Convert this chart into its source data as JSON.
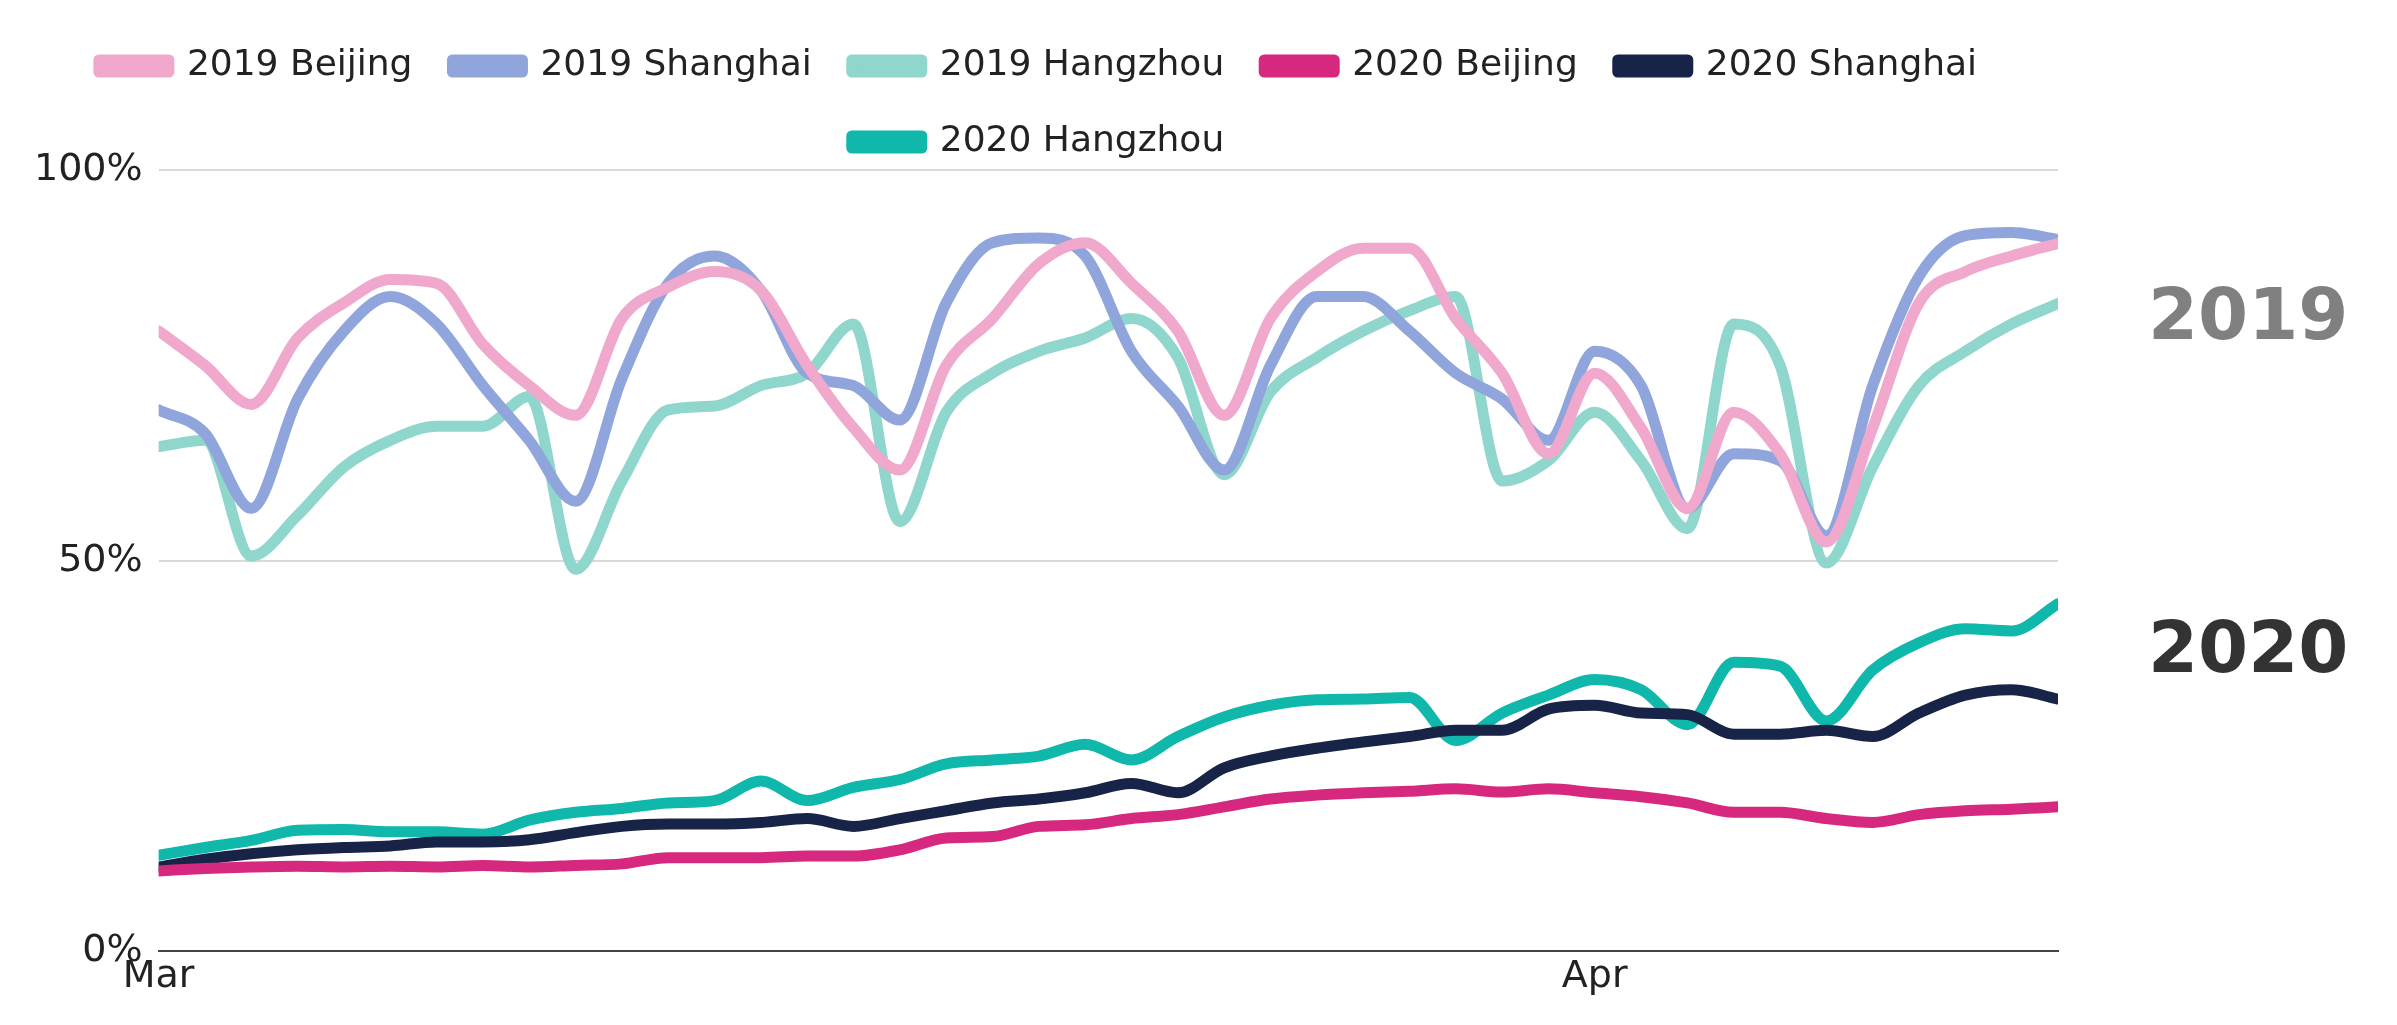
{
  "chart_data": {
    "type": "line",
    "x": [
      "--03-01",
      "--03-02",
      "--03-03",
      "--03-04",
      "--03-05",
      "--03-06",
      "--03-07",
      "--03-08",
      "--03-09",
      "--03-10",
      "--03-11",
      "--03-12",
      "--03-13",
      "--03-14",
      "--03-15",
      "--03-16",
      "--03-17",
      "--03-18",
      "--03-19",
      "--03-20",
      "--03-21",
      "--03-22",
      "--03-23",
      "--03-24",
      "--03-25",
      "--03-26",
      "--03-27",
      "--03-28",
      "--03-29",
      "--03-30",
      "--03-31",
      "--04-01",
      "--04-02",
      "--04-03",
      "--04-04",
      "--04-05",
      "--04-06",
      "--04-07",
      "--04-08",
      "--04-09",
      "--04-10",
      "--04-11"
    ],
    "series": [
      {
        "name": "2019 Beijing",
        "color": "#f0a8cc",
        "values": [
          79.4,
          75,
          70,
          78.5,
          83,
          86,
          85.5,
          77.7,
          72.4,
          68.6,
          81,
          85,
          87,
          84.6,
          75,
          67,
          61.6,
          75,
          81,
          88,
          90.7,
          85.5,
          79.4,
          68.6,
          81,
          87,
          90,
          90,
          81,
          74,
          63.7,
          74,
          67,
          56.7,
          69,
          63.7,
          52.4,
          67,
          83,
          87,
          89,
          90.6
        ]
      },
      {
        "name": "2019 Shanghai",
        "color": "#8fa5dc",
        "values": [
          69.3,
          66.3,
          56.7,
          70.7,
          79.4,
          83.8,
          80.3,
          72.4,
          65.4,
          57.6,
          73.3,
          85.5,
          89,
          84.6,
          74,
          72.4,
          68,
          83,
          90.7,
          91.3,
          89,
          76.8,
          69.8,
          61.6,
          75,
          83.8,
          83.8,
          79.4,
          74,
          70.7,
          65.4,
          76.8,
          72.4,
          56.7,
          63.7,
          62.8,
          53.2,
          72.4,
          86.4,
          91.6,
          92,
          91.1
        ]
      },
      {
        "name": "2019 Hangzhou",
        "color": "#8fd6cc",
        "values": [
          64.6,
          65.4,
          50.6,
          55.8,
          62,
          65.4,
          67.2,
          67.2,
          71,
          48.9,
          60.2,
          69.3,
          69.8,
          72.4,
          74,
          80.3,
          55,
          69,
          74,
          76.8,
          78.5,
          81,
          76,
          61,
          71.6,
          76,
          79.4,
          82,
          83.8,
          60.2,
          62.8,
          69,
          62.8,
          54.1,
          80.3,
          75,
          49.7,
          62,
          72.4,
          76.8,
          80.3,
          82.9
        ]
      },
      {
        "name": "2020 Beijing",
        "color": "#d6287e",
        "values": [
          10.3,
          10.6,
          10.8,
          10.9,
          10.8,
          10.9,
          10.8,
          11,
          10.8,
          11,
          11.2,
          12,
          12,
          12,
          12.2,
          12.2,
          13,
          14.5,
          14.7,
          16,
          16.2,
          17,
          17.5,
          18.5,
          19.5,
          20,
          20.3,
          20.5,
          20.8,
          20.4,
          20.8,
          20.3,
          19.8,
          19,
          17.8,
          17.8,
          17,
          16.5,
          17.5,
          18,
          18.2,
          18.5
        ]
      },
      {
        "name": "2020 Shanghai",
        "color": "#172347",
        "values": [
          10.8,
          11.8,
          12.5,
          13,
          13.3,
          13.5,
          14,
          14,
          14.3,
          15.2,
          16,
          16.3,
          16.3,
          16.5,
          17,
          16,
          17,
          18,
          19,
          19.5,
          20.3,
          21.5,
          20.3,
          23.5,
          25,
          26,
          26.8,
          27.5,
          28.3,
          28.3,
          31,
          31.5,
          30.5,
          30.3,
          27.8,
          27.8,
          28.3,
          27.5,
          30.5,
          32.8,
          33.5,
          32.3
        ]
      },
      {
        "name": "2020 Hangzhou",
        "color": "#0fb8aa",
        "values": [
          12.3,
          13.3,
          14.2,
          15.5,
          15.6,
          15.3,
          15.3,
          15,
          16.8,
          17.8,
          18.3,
          19,
          19.3,
          21.8,
          19.3,
          21,
          22,
          24,
          24.5,
          25,
          26.5,
          24.5,
          27.5,
          30,
          31.5,
          32.2,
          32.3,
          32.5,
          27,
          30.5,
          32.8,
          34.8,
          33.5,
          29,
          37,
          36.5,
          29.5,
          36,
          39.5,
          41.3,
          41,
          44.5
        ]
      }
    ],
    "xlim": [
      "--03-01",
      "--04-11"
    ],
    "xticks": [
      {
        "value": "--03-01",
        "label": "Mar"
      },
      {
        "value": "--04-01",
        "label": "Apr"
      }
    ],
    "ylim": [
      0,
      100
    ],
    "yticks": [
      {
        "value": 0,
        "label": "0%"
      },
      {
        "value": 50,
        "label": "50%"
      },
      {
        "value": 100,
        "label": "100%"
      }
    ],
    "grid": "y",
    "legend": "top",
    "marker": "none",
    "line_style": "solid",
    "annotations": [
      "2019",
      "2020"
    ]
  }
}
